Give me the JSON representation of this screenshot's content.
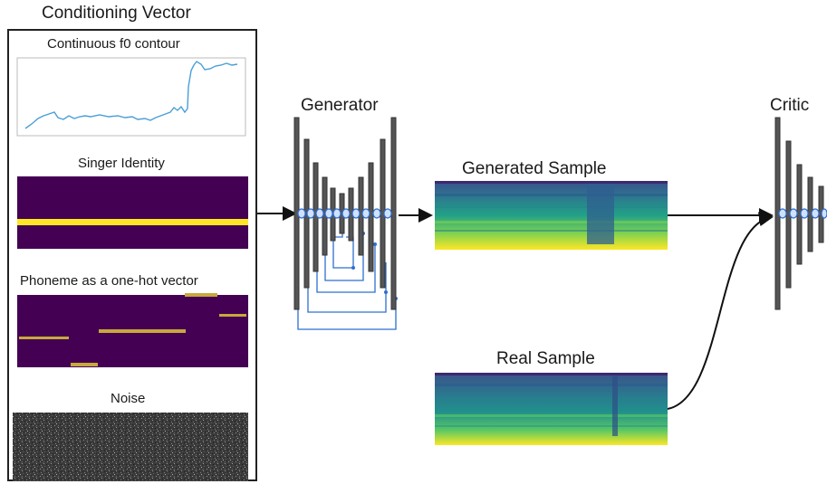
{
  "diagram": {
    "conditioning": {
      "title": "Conditioning Vector",
      "f0_label": "Continuous f0 contour",
      "singer_label": "Singer Identity",
      "phoneme_label": "Phoneme as a one-hot vector",
      "noise_label": "Noise"
    },
    "generator_label": "Generator",
    "generated_label": "Generated Sample",
    "real_label": "Real Sample",
    "critic_label": "Critic"
  },
  "colors": {
    "viridis_dark": "#440154",
    "viridis_yellow": "#fde725",
    "phoneme_bar": "#c9a83c",
    "f0_line": "#4a9fd8",
    "skip_connection": "#2e6fd1",
    "layer_bar": "#555555"
  }
}
